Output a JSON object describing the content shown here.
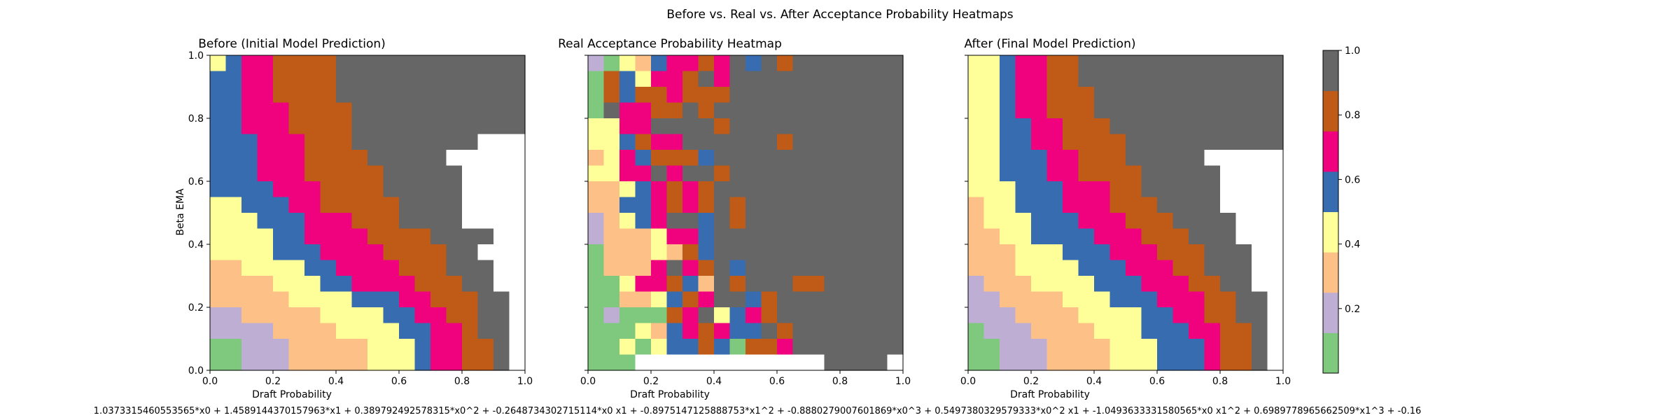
{
  "figure": {
    "suptitle": "Before vs. Real vs. After Acceptance Probability Heatmaps",
    "formula": "1.0373315460553565*x0 + 1.4589144370157963*x1 + 0.389792492578315*x0^2 + -0.2648734302715114*x0 x1 + -0.8975147125888753*x1^2 + -0.8880279007601869*x0^3 + 0.5497380329579333*x0^2 x1 + -1.0493633331580565*x0 x1^2 + 0.6989778965662509*x1^3 + -0.16"
  },
  "chart_data": {
    "type": "heatmap",
    "xlabel": "Draft Probability",
    "ylabel": "Beta EMA",
    "xlim": [
      0,
      1
    ],
    "ylim": [
      0,
      1
    ],
    "x_ticks": [
      "0.0",
      "0.2",
      "0.4",
      "0.6",
      "0.8",
      "1.0"
    ],
    "y_ticks": [
      "0.0",
      "0.2",
      "0.4",
      "0.6",
      "0.8",
      "1.0"
    ],
    "grid": false,
    "colorbar": {
      "ticks": [
        "0.2",
        "0.4",
        "0.6",
        "0.8",
        "1.0"
      ],
      "levels": 8,
      "range": [
        0,
        1
      ],
      "colors": [
        "#7fc97f",
        "#beaed4",
        "#fdc086",
        "#ffff99",
        "#386cb0",
        "#f0027f",
        "#bf5b17",
        "#666666"
      ]
    },
    "empty_color": "#ffffff",
    "grid_size": 20,
    "panels": [
      {
        "title": "Before (Initial Model Prediction)",
        "rows_top_to_bottom": [
          "34556666777777777777",
          "44556666777777777777",
          "44556666777777777777",
          "44555666677777777777",
          "44555666677777777777",
          "44455566677777777888",
          "44455566667777788888",
          "44455566666777778888",
          "44445556666777778888",
          "33444556666677778888",
          "33344455566677778888",
          "33334455556666777788",
          "33334445555666677888",
          "22333344555566677788",
          "22223334455556667788",
          "22222333344455666778",
          "11222223333445566778",
          "11112222333344556778",
          "00111222223334556678",
          "00111222223334556678"
        ]
      },
      {
        "title": "Real Acceptance Probability Heatmap",
        "rows_top_to_bottom": [
          "10324556574767777777",
          "06435567577777777777",
          "06466566677777777777",
          "07556676777777777777",
          "33557777677777777777",
          "33465577777767777777",
          "23546664777777777777",
          "33557577677777777777",
          "22345656777777777777",
          "22445656767777777777",
          "12345774767777777777",
          "12223554777777777777",
          "02223264777777777777",
          "02225756747777777777",
          "00355642767776677777",
          "00223465774677777777",
          "01000657345677777777",
          "00032456544767777777",
          "00303446406657777777",
          "00099999999999977779"
        ]
      },
      {
        "title": "After (Final Model Prediction)",
        "rows_top_to_bottom": [
          "33455667777777777777",
          "33455667777777777777",
          "33455666777777777777",
          "33455666777777777777",
          "33445566677777777777",
          "33445566667777777777",
          "33444556667777788888",
          "33444556666777778888",
          "33344455566777778888",
          "23344455566677778888",
          "23334445556667777888",
          "22334444555666777888",
          "22233344455566677788",
          "22233334445556677788",
          "12223333444555667788",
          "11222233344455566778",
          "11122223333445566778",
          "01112222333444556678",
          "00111222233344456678",
          "00111222233344456678"
        ]
      }
    ]
  }
}
